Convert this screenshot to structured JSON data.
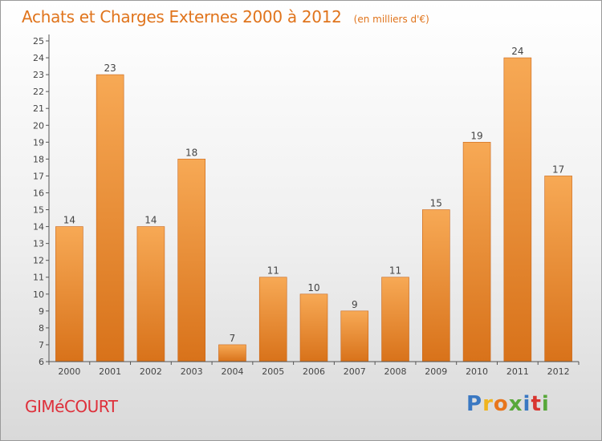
{
  "header": {
    "title": "Achats et Charges Externes 2000 à 2012",
    "subtitle": "(en milliers d'€)"
  },
  "footer": {
    "commune": "GIMéCOURT",
    "brand": {
      "letters": [
        "P",
        "r",
        "o",
        "x",
        "i",
        "t",
        "i"
      ],
      "colors": [
        "#3a78c2",
        "#f0b41e",
        "#e8751c",
        "#58a83a",
        "#3a78c2",
        "#d8352f",
        "#58a83a"
      ]
    }
  },
  "chart_data": {
    "type": "bar",
    "categories": [
      "2000",
      "2001",
      "2002",
      "2003",
      "2004",
      "2005",
      "2006",
      "2007",
      "2008",
      "2009",
      "2010",
      "2011",
      "2012"
    ],
    "values": [
      14,
      23,
      14,
      18,
      7,
      11,
      10,
      9,
      11,
      15,
      19,
      24,
      17
    ],
    "title": "Achats et Charges Externes 2000 à 2012",
    "subtitle": "(en milliers d'€)",
    "xlabel": "",
    "ylabel": "",
    "ylim": [
      6,
      25
    ],
    "yticks": [
      6,
      7,
      8,
      9,
      10,
      11,
      12,
      13,
      14,
      15,
      16,
      17,
      18,
      19,
      20,
      21,
      22,
      23,
      24,
      25
    ],
    "grid": false,
    "legend": "none",
    "colors": {
      "bar_top": "#f7a955",
      "bar_bottom": "#d8721a",
      "bar_edge": "#c9661a",
      "axis": "#555555"
    }
  }
}
